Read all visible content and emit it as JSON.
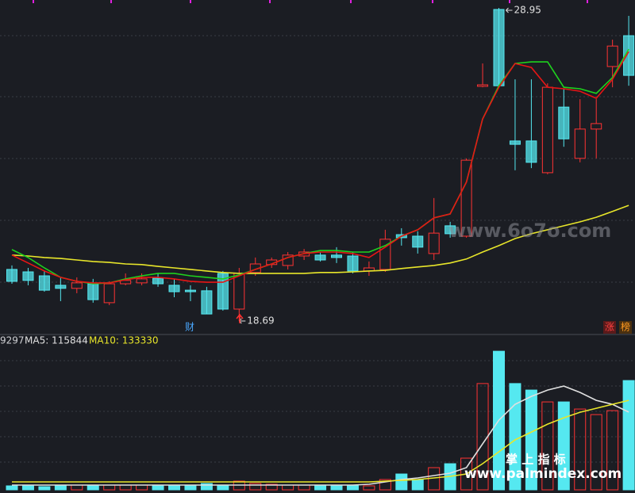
{
  "chart_data": [
    {
      "type": "candlestick",
      "open": [
        20.38,
        20.3,
        20.17,
        19.86,
        19.76,
        19.91,
        19.29,
        19.91,
        19.94,
        20.09,
        19.86,
        19.7,
        19.68,
        20.25,
        19.08,
        20.28,
        20.54,
        20.51,
        20.82,
        20.85,
        20.85,
        20.82,
        20.33,
        20.38,
        21.52,
        21.47,
        20.9,
        21.81,
        21.47,
        26.38,
        28.9,
        24.59,
        24.59,
        23.55,
        25.7,
        24.02,
        24.98,
        27.03,
        28.04
      ],
      "high": [
        20.51,
        20.43,
        20.33,
        20.12,
        20.12,
        20.07,
        19.99,
        20.25,
        20.25,
        20.25,
        20.07,
        19.86,
        19.81,
        20.33,
        20.43,
        20.77,
        20.77,
        20.95,
        21.05,
        20.95,
        21.11,
        20.95,
        20.64,
        21.68,
        21.73,
        21.63,
        22.72,
        21.94,
        24.02,
        27.13,
        28.95,
        26.61,
        26.61,
        26.48,
        26.3,
        25.96,
        25.96,
        27.91,
        28.69
      ],
      "low": [
        19.91,
        19.86,
        19.65,
        19.34,
        19.6,
        19.29,
        19.21,
        19.86,
        19.86,
        19.81,
        19.47,
        19.34,
        18.92,
        19.03,
        18.69,
        20.17,
        20.43,
        20.38,
        20.69,
        20.64,
        20.59,
        20.25,
        20.17,
        20.3,
        21.16,
        20.9,
        20.69,
        21.42,
        21.42,
        26.35,
        26.35,
        23.63,
        23.7,
        23.5,
        24.4,
        23.89,
        24.02,
        26.35,
        26.4
      ],
      "close": [
        19.99,
        20.02,
        19.7,
        19.76,
        19.94,
        19.39,
        19.91,
        20.02,
        20.07,
        19.91,
        19.65,
        19.65,
        18.92,
        19.08,
        20.25,
        20.56,
        20.69,
        20.85,
        20.95,
        20.69,
        20.77,
        20.33,
        20.43,
        21.37,
        21.42,
        21.11,
        21.57,
        21.55,
        23.96,
        26.43,
        26.4,
        24.48,
        23.89,
        26.35,
        24.66,
        24.98,
        25.16,
        27.7,
        26.74
      ],
      "up_color": "#ff3333",
      "down_color": "#55e8f0",
      "series": [
        {
          "color": "#e8e62a",
          "values": [
            20.85,
            20.82,
            20.77,
            20.74,
            20.69,
            20.64,
            20.61,
            20.56,
            20.54,
            20.48,
            20.43,
            20.38,
            20.33,
            20.28,
            20.25,
            20.25,
            20.25,
            20.25,
            20.25,
            20.28,
            20.28,
            20.3,
            20.33,
            20.35,
            20.41,
            20.46,
            20.51,
            20.59,
            20.72,
            20.95,
            21.16,
            21.39,
            21.55,
            21.68,
            21.81,
            21.94,
            22.09,
            22.28,
            22.48
          ]
        },
        {
          "color": "#1ed21e",
          "values": [
            21.03,
            20.77,
            20.43,
            20.12,
            19.99,
            19.91,
            19.94,
            20.07,
            20.17,
            20.25,
            20.25,
            20.17,
            20.12,
            20.07,
            20.2,
            20.38,
            20.56,
            20.77,
            20.9,
            21.0,
            21.0,
            20.95,
            20.95,
            21.16,
            21.47,
            21.68,
            22.07,
            22.2,
            23.24,
            25.31,
            26.4,
            27.13,
            27.18,
            27.18,
            26.35,
            26.3,
            26.15,
            26.67,
            27.6
          ]
        },
        {
          "color": "#e81515",
          "values": [
            20.85,
            20.59,
            20.33,
            20.12,
            19.99,
            19.94,
            19.94,
            20.04,
            20.12,
            20.12,
            20.07,
            19.99,
            19.96,
            19.96,
            20.17,
            20.38,
            20.56,
            20.77,
            20.9,
            20.95,
            20.95,
            20.9,
            20.77,
            21.11,
            21.47,
            21.68,
            22.07,
            22.2,
            23.24,
            25.31,
            26.35,
            27.13,
            27.0,
            26.35,
            26.3,
            26.22,
            25.99,
            26.61,
            27.52
          ]
        }
      ],
      "ylim": [
        18.3,
        29.21
      ],
      "annotations": [
        "财",
        "涨",
        "榜"
      ]
    },
    {
      "type": "bar",
      "values": [
        5900,
        5900,
        4720,
        5900,
        7080,
        5900,
        7080,
        7080,
        7080,
        5900,
        7080,
        7080,
        9440,
        7080,
        12980,
        9440,
        8260,
        7080,
        7080,
        7080,
        7080,
        7080,
        5900,
        15340,
        23600,
        15340,
        33040,
        38940,
        47200,
        158360,
        206500,
        158360,
        148680,
        130980,
        130980,
        120360,
        112100,
        118000,
        162840
      ],
      "series": [
        {
          "color": "#e0e0e0",
          "values": [
            7080,
            7080,
            7080,
            7080,
            7080,
            7080,
            7080,
            7080,
            7080,
            7080,
            7080,
            7080,
            7080,
            7080,
            7080,
            7080,
            7080,
            7080,
            7080,
            7080,
            7080,
            7080,
            8260,
            11800,
            15340,
            17700,
            21240,
            24780,
            33040,
            68440,
            103840,
            127440,
            139240,
            148680,
            154580,
            145140,
            133340,
            127440,
            115844
          ]
        },
        {
          "color": "#e8e62a",
          "values": [
            11800,
            11800,
            11800,
            11800,
            11800,
            11800,
            11800,
            11800,
            11800,
            11800,
            11800,
            11800,
            11800,
            11800,
            11800,
            11800,
            11800,
            11800,
            11800,
            11800,
            11800,
            11800,
            11800,
            12980,
            14160,
            15340,
            17700,
            20060,
            23600,
            38940,
            56640,
            74340,
            86140,
            97940,
            107380,
            115640,
            121540,
            127440,
            133330
          ]
        }
      ],
      "ylim": [
        0,
        222000
      ],
      "legend": [
        "9297",
        "MA5: 115844",
        "MA10: 133330"
      ]
    }
  ],
  "watermarks": [
    "www.6o7o.com",
    "掌 上 指 标",
    "www.palmindex.com"
  ]
}
